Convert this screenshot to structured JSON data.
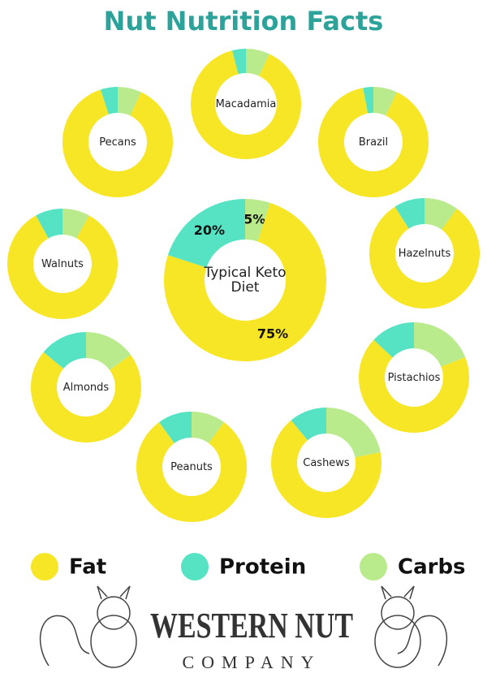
{
  "title": "Nut Nutrition Facts",
  "legend": [
    {
      "name": "Fat",
      "color": "#f7e625"
    },
    {
      "name": "Protein",
      "color": "#55e3c3"
    },
    {
      "name": "Carbs",
      "color": "#b9ea8c"
    }
  ],
  "chart_data": [
    {
      "type": "donut",
      "title": "Macadamia",
      "values": [
        89,
        4,
        7
      ]
    },
    {
      "type": "donut",
      "title": "Pecans",
      "values": [
        88,
        5,
        7
      ]
    },
    {
      "type": "donut",
      "title": "Brazil",
      "values": [
        90,
        3,
        7
      ]
    },
    {
      "type": "donut",
      "title": "Walnuts",
      "values": [
        84,
        8,
        8
      ]
    },
    {
      "type": "donut",
      "title": "Hazelnuts",
      "values": [
        81,
        9,
        10
      ]
    },
    {
      "type": "donut",
      "title": "Typical Keto Diet",
      "values": [
        75,
        20,
        5
      ],
      "value_labels": [
        "75%",
        "20%",
        "5%"
      ]
    },
    {
      "type": "donut",
      "title": "Almonds",
      "values": [
        71,
        14,
        15
      ]
    },
    {
      "type": "donut",
      "title": "Pistachios",
      "values": [
        68,
        13,
        19
      ]
    },
    {
      "type": "donut",
      "title": "Peanuts",
      "values": [
        80,
        10,
        10
      ]
    },
    {
      "type": "donut",
      "title": "Cashews",
      "values": [
        67,
        11,
        22
      ]
    }
  ],
  "footer": {
    "brand": "WESTERN NUT",
    "sub": "COMPANY"
  }
}
